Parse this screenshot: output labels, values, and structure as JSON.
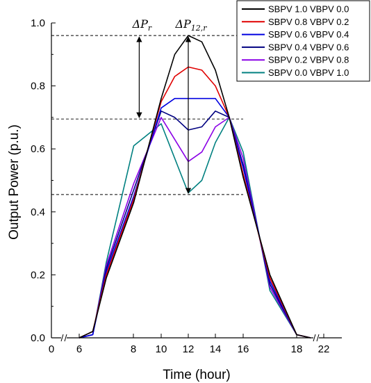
{
  "chart_data": {
    "type": "line",
    "xlabel": "Time (hour)",
    "ylabel": "Output Power (p.u.)",
    "x_ticks": [
      "0",
      "6",
      "8",
      "10",
      "12",
      "14",
      "16",
      "18",
      "22"
    ],
    "y_ticks": [
      "0.0",
      "0.2",
      "0.4",
      "0.6",
      "0.8",
      "1.0"
    ],
    "ylim": [
      0,
      1.0
    ],
    "x_axis_break": true,
    "legend_position": "top-right",
    "x": [
      6,
      7,
      8,
      9,
      10,
      11,
      12,
      13,
      14,
      15,
      16,
      17,
      18,
      19
    ],
    "series": [
      {
        "name": "SBPV 1.0 VBPV 0.0",
        "color": "#000000",
        "values": [
          0.0,
          0.02,
          0.19,
          0.43,
          0.76,
          0.9,
          0.96,
          0.94,
          0.85,
          0.7,
          0.51,
          0.2,
          0.01,
          0.0
        ]
      },
      {
        "name": "SBPV 0.8 VBPV 0.2",
        "color": "#e00000",
        "values": [
          0.0,
          0.02,
          0.2,
          0.44,
          0.75,
          0.83,
          0.86,
          0.85,
          0.8,
          0.7,
          0.52,
          0.19,
          0.01,
          0.0
        ]
      },
      {
        "name": "SBPV 0.6 VBPV 0.4",
        "color": "#0000e0",
        "values": [
          0.0,
          0.01,
          0.21,
          0.45,
          0.73,
          0.76,
          0.76,
          0.76,
          0.76,
          0.7,
          0.54,
          0.18,
          0.01,
          0.0
        ]
      },
      {
        "name": "SBPV 0.4 VBPV 0.6",
        "color": "#000080",
        "values": [
          0.0,
          0.01,
          0.22,
          0.47,
          0.72,
          0.7,
          0.66,
          0.67,
          0.72,
          0.7,
          0.55,
          0.17,
          0.01,
          0.0
        ]
      },
      {
        "name": "SBPV 0.2 VBPV 0.8",
        "color": "#8a00e6",
        "values": [
          0.0,
          0.01,
          0.23,
          0.49,
          0.7,
          0.63,
          0.56,
          0.59,
          0.67,
          0.7,
          0.57,
          0.16,
          0.01,
          0.0
        ]
      },
      {
        "name": "SBPV 0.0 VBPV 1.0",
        "color": "#008080",
        "values": [
          0.0,
          0.01,
          0.24,
          0.61,
          0.68,
          0.57,
          0.46,
          0.5,
          0.62,
          0.7,
          0.59,
          0.15,
          0.01,
          0.0
        ]
      }
    ],
    "annotations": [
      {
        "main": "ΔP",
        "sub": "r",
        "y_top": 0.96,
        "y_bottom": 0.695,
        "x": 9.2,
        "label_x": 9.2
      },
      {
        "main": "ΔP",
        "sub": "12,r",
        "y_top": 0.96,
        "y_bottom": 0.455,
        "x": 12,
        "label_x": 12
      }
    ],
    "reference_lines": [
      0.96,
      0.695,
      0.455
    ]
  }
}
